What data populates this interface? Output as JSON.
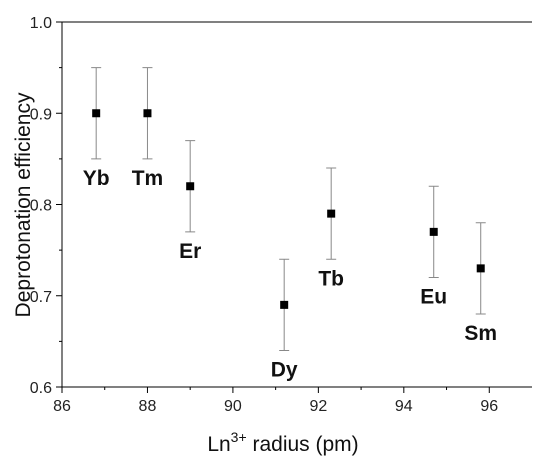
{
  "chart_data": {
    "type": "scatter",
    "xlabel": {
      "base": "Ln",
      "sup": "3+",
      "rest": " radius (pm)"
    },
    "ylabel": "Deprotonation efficiency",
    "xlim": [
      86,
      97
    ],
    "ylim": [
      0.6,
      1.0
    ],
    "x_ticks": [
      86,
      88,
      90,
      92,
      94,
      96
    ],
    "y_ticks": [
      0.6,
      0.7,
      0.8,
      0.9,
      1.0
    ],
    "x_tick_labels": [
      "86",
      "88",
      "90",
      "92",
      "94",
      "96"
    ],
    "y_tick_labels": [
      "0.6",
      "0.7",
      "0.8",
      "0.9",
      "1.0"
    ],
    "grid": false,
    "marker": "square",
    "color": "#000000",
    "points": [
      {
        "label": "Yb",
        "x": 86.8,
        "y": 0.9,
        "err": 0.05,
        "label_pos": "below"
      },
      {
        "label": "Tm",
        "x": 88.0,
        "y": 0.9,
        "err": 0.05,
        "label_pos": "below"
      },
      {
        "label": "Er",
        "x": 89.0,
        "y": 0.82,
        "err": 0.05,
        "label_pos": "below"
      },
      {
        "label": "Dy",
        "x": 91.2,
        "y": 0.69,
        "err": 0.05,
        "label_pos": "below"
      },
      {
        "label": "Tb",
        "x": 92.3,
        "y": 0.79,
        "err": 0.05,
        "label_pos": "below"
      },
      {
        "label": "Eu",
        "x": 94.7,
        "y": 0.77,
        "err": 0.05,
        "label_pos": "below"
      },
      {
        "label": "Sm",
        "x": 95.8,
        "y": 0.73,
        "err": 0.05,
        "label_pos": "below"
      }
    ]
  }
}
